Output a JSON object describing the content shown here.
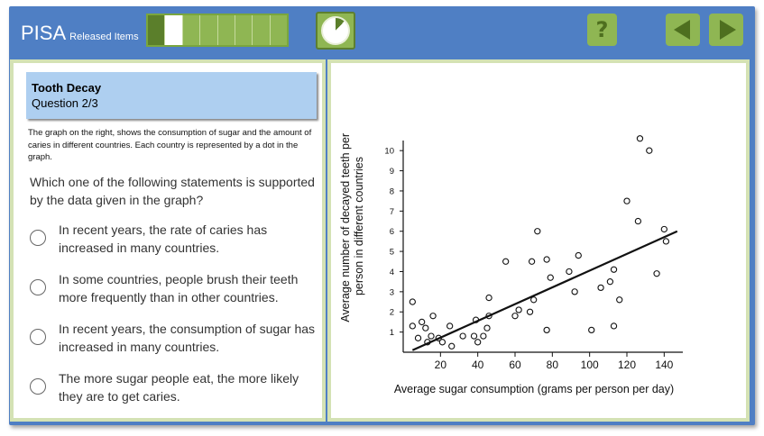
{
  "header": {
    "brand": "PISA",
    "brand_sub": "Released Items",
    "progress": {
      "total": 8,
      "completed": 1,
      "current": 2
    },
    "timer_fraction_elapsed": 0.12,
    "help_label": "?"
  },
  "question": {
    "unit_title": "Tooth Decay",
    "number": "Question 2/3",
    "stimulus": "The graph on the right, shows the consumption of sugar and the amount of caries in different countries. Each country is represented by a dot in the graph.",
    "prompt": "Which one of the following statements is supported by the data given in the graph?",
    "options": [
      "In recent years, the rate of caries has increased in many countries.",
      "In some countries, people brush their teeth more frequently than in other countries.",
      "In recent years, the consumption of sugar has increased in many countries.",
      "The more sugar people eat, the more likely they are to get caries."
    ]
  },
  "colors": {
    "frame": "#4f7fc4",
    "button": "#8fb653",
    "title_box": "#aecff0",
    "panel_border": "#d4e2b4"
  },
  "chart_data": {
    "type": "scatter",
    "xlabel": "Average sugar consumption (grams per person per day)",
    "ylabel": "Average number of decayed teeth per person in different countries",
    "xlim": [
      0,
      150
    ],
    "ylim": [
      0,
      10.5
    ],
    "x_ticks": [
      20,
      40,
      60,
      80,
      100,
      120,
      140
    ],
    "y_ticks": [
      1,
      2,
      3,
      4,
      5,
      6,
      7,
      8,
      9,
      10
    ],
    "grid": false,
    "trend_line": {
      "x": [
        5,
        147
      ],
      "y": [
        0.1,
        6.0
      ]
    },
    "points": [
      {
        "x": 5,
        "y": 2.5
      },
      {
        "x": 5,
        "y": 1.3
      },
      {
        "x": 8,
        "y": 0.7
      },
      {
        "x": 10,
        "y": 1.5
      },
      {
        "x": 12,
        "y": 1.2
      },
      {
        "x": 13,
        "y": 0.5
      },
      {
        "x": 15,
        "y": 0.8
      },
      {
        "x": 16,
        "y": 1.8
      },
      {
        "x": 19,
        "y": 0.7
      },
      {
        "x": 21,
        "y": 0.5
      },
      {
        "x": 25,
        "y": 1.3
      },
      {
        "x": 26,
        "y": 0.3
      },
      {
        "x": 32,
        "y": 0.8
      },
      {
        "x": 38,
        "y": 0.8
      },
      {
        "x": 39,
        "y": 1.6
      },
      {
        "x": 40,
        "y": 0.5
      },
      {
        "x": 43,
        "y": 0.8
      },
      {
        "x": 45,
        "y": 1.2
      },
      {
        "x": 46,
        "y": 1.8
      },
      {
        "x": 46,
        "y": 2.7
      },
      {
        "x": 55,
        "y": 4.5
      },
      {
        "x": 60,
        "y": 1.8
      },
      {
        "x": 62,
        "y": 2.1
      },
      {
        "x": 68,
        "y": 2.0
      },
      {
        "x": 69,
        "y": 4.5
      },
      {
        "x": 70,
        "y": 2.6
      },
      {
        "x": 72,
        "y": 6.0
      },
      {
        "x": 77,
        "y": 4.6
      },
      {
        "x": 77,
        "y": 1.1
      },
      {
        "x": 79,
        "y": 3.7
      },
      {
        "x": 89,
        "y": 4.0
      },
      {
        "x": 92,
        "y": 3.0
      },
      {
        "x": 94,
        "y": 4.8
      },
      {
        "x": 101,
        "y": 1.1
      },
      {
        "x": 106,
        "y": 3.2
      },
      {
        "x": 111,
        "y": 3.5
      },
      {
        "x": 113,
        "y": 4.1
      },
      {
        "x": 113,
        "y": 1.3
      },
      {
        "x": 116,
        "y": 2.6
      },
      {
        "x": 120,
        "y": 7.5
      },
      {
        "x": 126,
        "y": 6.5
      },
      {
        "x": 127,
        "y": 10.6
      },
      {
        "x": 132,
        "y": 10.0
      },
      {
        "x": 136,
        "y": 3.9
      },
      {
        "x": 140,
        "y": 6.1
      },
      {
        "x": 141,
        "y": 5.5
      }
    ]
  }
}
